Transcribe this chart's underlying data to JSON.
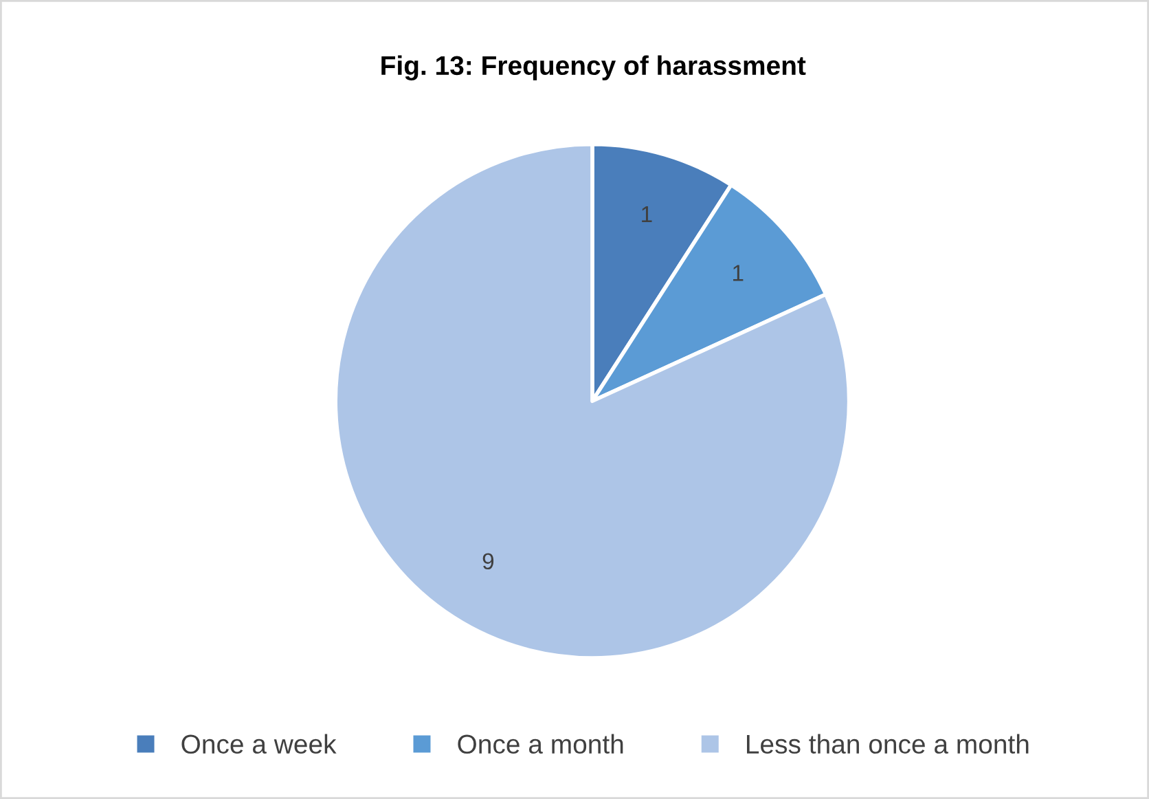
{
  "chart_data": {
    "type": "pie",
    "title": "Fig. 13: Frequency of harassment",
    "categories": [
      "Once a week",
      "Once a month",
      "Less than once a month"
    ],
    "values": [
      1,
      1,
      9
    ],
    "colors": [
      "#4a7ebb",
      "#5b9bd5",
      "#adc5e7"
    ],
    "data_labels": true,
    "legend": "bottom"
  }
}
